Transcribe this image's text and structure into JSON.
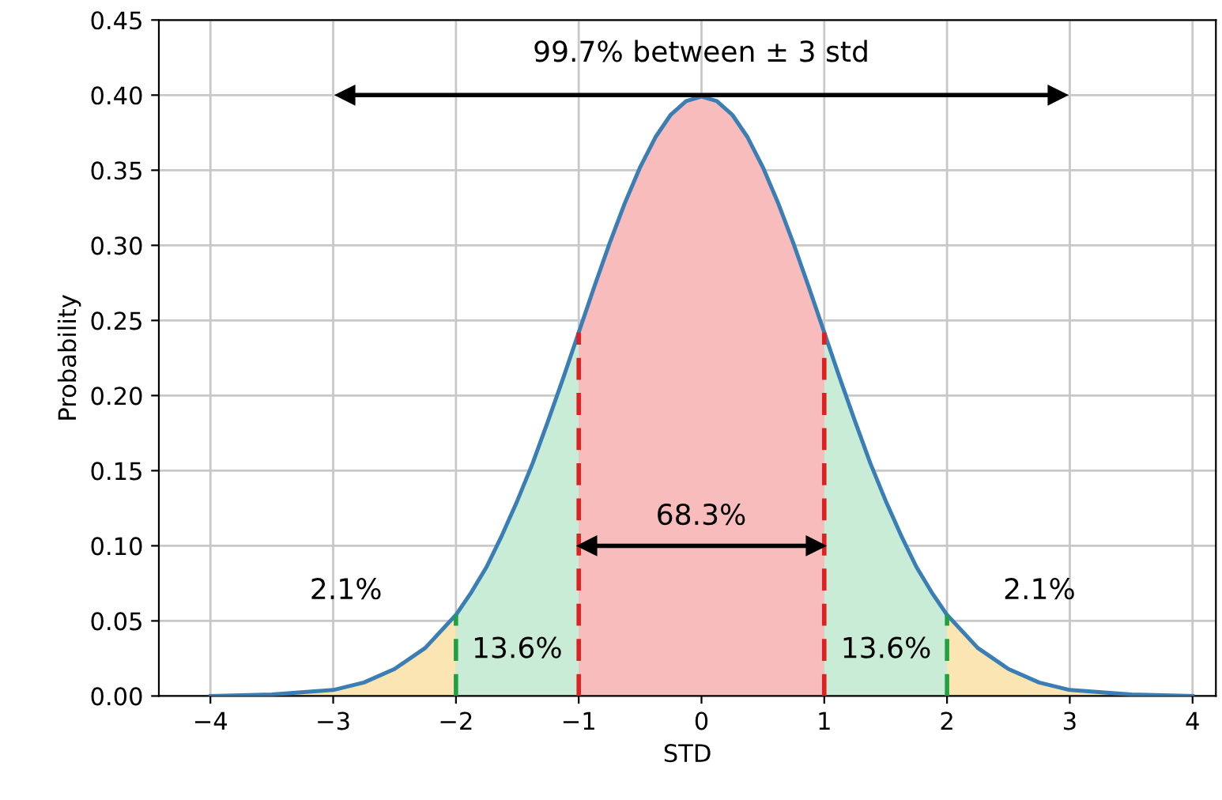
{
  "chart_data": {
    "type": "line",
    "xlabel": "STD",
    "ylabel": "Probability",
    "xlim": [
      -4.42,
      4.19
    ],
    "ylim": [
      0,
      0.45
    ],
    "xticks": [
      {
        "value": -4,
        "label": "−4"
      },
      {
        "value": -3,
        "label": "−3"
      },
      {
        "value": -2,
        "label": "−2"
      },
      {
        "value": -1,
        "label": "−1"
      },
      0,
      1,
      2,
      3,
      4
    ],
    "yticks": [
      {
        "value": 0,
        "label": "0.00"
      },
      {
        "value": 0.05,
        "label": "0.05"
      },
      {
        "value": 0.1,
        "label": "0.10"
      },
      {
        "value": 0.15,
        "label": "0.15"
      },
      {
        "value": 0.2,
        "label": "0.20"
      },
      {
        "value": 0.25,
        "label": "0.25"
      },
      {
        "value": 0.3,
        "label": "0.30"
      },
      {
        "value": 0.35,
        "label": "0.35"
      },
      {
        "value": 0.4,
        "label": "0.40"
      },
      {
        "value": 0.45,
        "label": "0.45"
      }
    ],
    "grid": true,
    "series": [
      {
        "type": "area",
        "color": "#fbe6b3",
        "x": [
          -4,
          -3.5,
          -3,
          -2.75,
          -2.5,
          -2.25,
          -2
        ],
        "values": [
          0.0,
          0.001,
          0.004,
          0.009,
          0.018,
          0.032,
          0.054
        ]
      },
      {
        "type": "area",
        "color": "#c8ecd6",
        "x": [
          -2,
          -1.875,
          -1.75,
          -1.625,
          -1.5,
          -1.375,
          -1.25,
          -1.125,
          -1
        ],
        "values": [
          0.054,
          0.069,
          0.086,
          0.107,
          0.13,
          0.155,
          0.183,
          0.212,
          0.242
        ]
      },
      {
        "type": "area",
        "color": "#f9bcbc",
        "x": [
          -1,
          -0.875,
          -0.75,
          -0.625,
          -0.5,
          -0.375,
          -0.25,
          -0.125,
          0,
          0.125,
          0.25,
          0.375,
          0.5,
          0.625,
          0.75,
          0.875,
          1
        ],
        "values": [
          0.242,
          0.272,
          0.301,
          0.328,
          0.352,
          0.372,
          0.387,
          0.396,
          0.399,
          0.396,
          0.387,
          0.372,
          0.352,
          0.328,
          0.301,
          0.272,
          0.242
        ]
      },
      {
        "type": "area",
        "color": "#c8ecd6",
        "x": [
          1,
          1.125,
          1.25,
          1.375,
          1.5,
          1.625,
          1.75,
          1.875,
          2
        ],
        "values": [
          0.242,
          0.212,
          0.183,
          0.155,
          0.13,
          0.107,
          0.086,
          0.069,
          0.054
        ]
      },
      {
        "type": "area",
        "color": "#fbe6b3",
        "x": [
          2,
          2.25,
          2.5,
          2.75,
          3,
          3.5,
          4
        ],
        "values": [
          0.054,
          0.032,
          0.018,
          0.009,
          0.004,
          0.001,
          0.0
        ]
      },
      {
        "type": "line",
        "color": "#3a7eb5",
        "line_style": "solid",
        "x": [
          -4,
          -3.5,
          -3,
          -2.75,
          -2.5,
          -2.25,
          -2,
          -1.875,
          -1.75,
          -1.625,
          -1.5,
          -1.375,
          -1.25,
          -1.125,
          -1,
          -0.875,
          -0.75,
          -0.625,
          -0.5,
          -0.375,
          -0.25,
          -0.125,
          0,
          0.125,
          0.25,
          0.375,
          0.5,
          0.625,
          0.75,
          0.875,
          1,
          1.125,
          1.25,
          1.375,
          1.5,
          1.625,
          1.75,
          1.875,
          2,
          2.25,
          2.5,
          2.75,
          3,
          3.5,
          4
        ],
        "values": [
          0.0,
          0.001,
          0.004,
          0.009,
          0.018,
          0.032,
          0.054,
          0.069,
          0.086,
          0.107,
          0.13,
          0.155,
          0.183,
          0.212,
          0.242,
          0.272,
          0.301,
          0.328,
          0.352,
          0.372,
          0.387,
          0.396,
          0.399,
          0.396,
          0.387,
          0.372,
          0.352,
          0.328,
          0.301,
          0.272,
          0.242,
          0.212,
          0.183,
          0.155,
          0.13,
          0.107,
          0.086,
          0.069,
          0.054,
          0.032,
          0.018,
          0.009,
          0.004,
          0.001,
          0.0
        ]
      },
      {
        "type": "line",
        "color": "#e02020",
        "line_style": "dashed",
        "x": [
          -1,
          -1
        ],
        "values": [
          0,
          0.242
        ]
      },
      {
        "type": "line",
        "color": "#e02020",
        "line_style": "dashed",
        "x": [
          1,
          1
        ],
        "values": [
          0,
          0.242
        ]
      },
      {
        "type": "line",
        "color": "#20a040",
        "line_style": "dashed",
        "x": [
          -2,
          -2
        ],
        "values": [
          0,
          0.054
        ]
      },
      {
        "type": "line",
        "color": "#20a040",
        "line_style": "dashed",
        "x": [
          2,
          2
        ],
        "values": [
          0,
          0.054
        ]
      },
      {
        "type": "line",
        "color": "#000000",
        "line_style": "solid",
        "marker": "triangle",
        "x": [
          -2.9,
          2.9
        ],
        "values": [
          0.4,
          0.4
        ]
      },
      {
        "type": "line",
        "color": "#000000",
        "line_style": "solid",
        "marker": "triangle",
        "x": [
          -0.93,
          0.93
        ],
        "values": [
          0.1,
          0.1
        ]
      }
    ],
    "annotations": [
      "99.7% between ± 3 std",
      "68.3%",
      "13.6%",
      "13.6%",
      "2.1%",
      "2.1%"
    ]
  }
}
